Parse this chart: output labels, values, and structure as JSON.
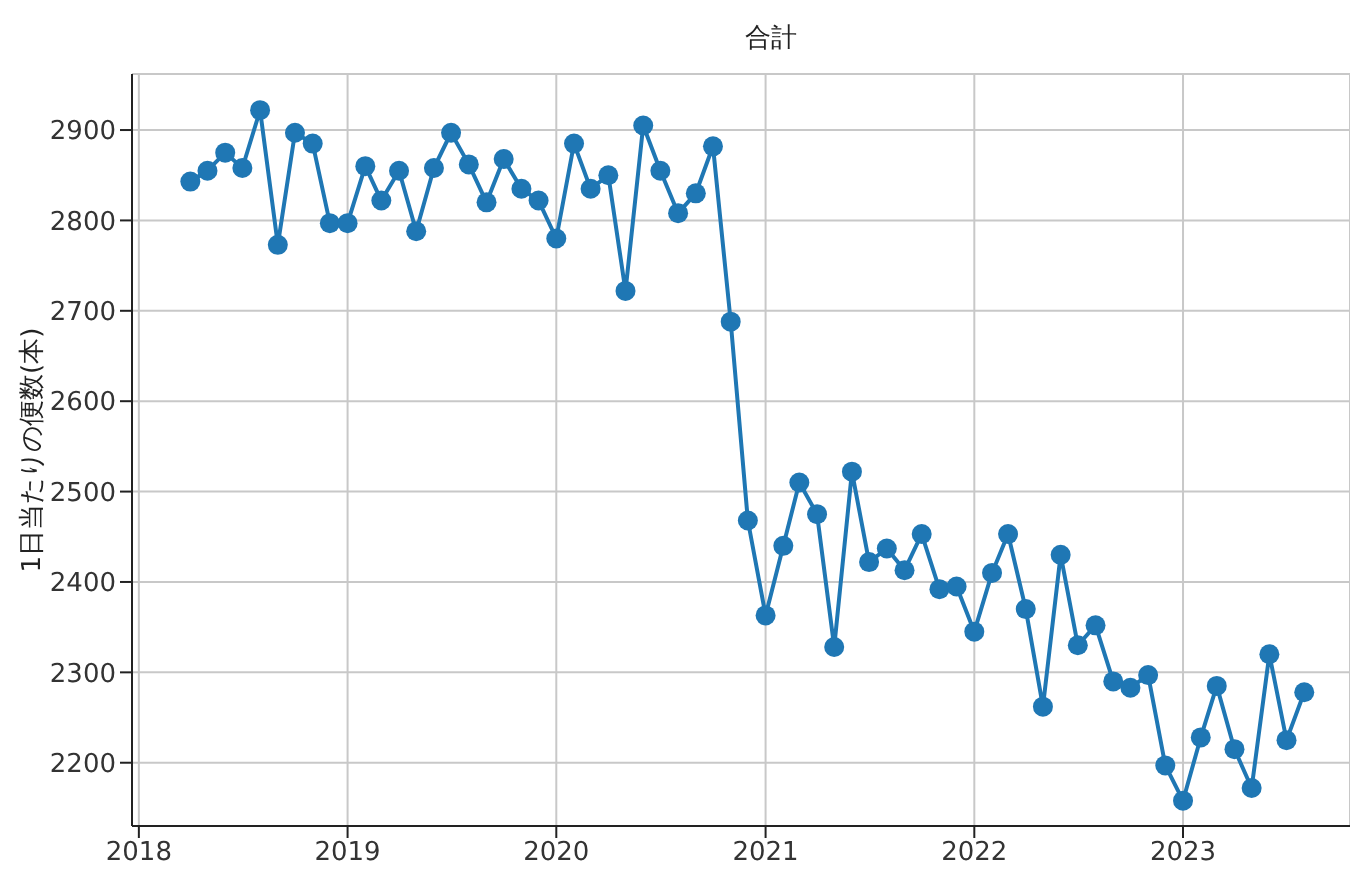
{
  "chart_data": {
    "type": "line",
    "title": "合計",
    "ylabel": "1日当たりの便数(本)",
    "x": [
      "2018-04",
      "2018-05",
      "2018-06",
      "2018-07",
      "2018-08",
      "2018-09",
      "2018-10",
      "2018-11",
      "2018-12",
      "2019-01",
      "2019-02",
      "2019-03",
      "2019-04",
      "2019-05",
      "2019-06",
      "2019-07",
      "2019-08",
      "2019-09",
      "2019-10",
      "2019-11",
      "2019-12",
      "2020-01",
      "2020-02",
      "2020-03",
      "2020-04",
      "2020-05",
      "2020-06",
      "2020-07",
      "2020-08",
      "2020-09",
      "2020-10",
      "2020-11",
      "2020-12",
      "2021-01",
      "2021-02",
      "2021-03",
      "2021-04",
      "2021-05",
      "2021-06",
      "2021-07",
      "2021-08",
      "2021-09",
      "2021-10",
      "2021-11",
      "2021-12",
      "2022-01",
      "2022-02",
      "2022-03",
      "2022-04",
      "2022-05",
      "2022-06",
      "2022-07",
      "2022-08",
      "2022-09",
      "2022-10",
      "2022-11",
      "2022-12",
      "2023-01",
      "2023-02",
      "2023-03",
      "2023-04",
      "2023-05",
      "2023-06",
      "2023-07",
      "2023-08"
    ],
    "series": [
      {
        "color": "#1f77b4",
        "values": [
          2843,
          2855,
          2875,
          2858,
          2922,
          2773,
          2897,
          2885,
          2797,
          2797,
          2860,
          2822,
          2855,
          2788,
          2858,
          2897,
          2862,
          2820,
          2868,
          2835,
          2822,
          2780,
          2885,
          2835,
          2850,
          2722,
          2905,
          2855,
          2808,
          2830,
          2882,
          2688,
          2468,
          2363,
          2440,
          2510,
          2475,
          2328,
          2522,
          2422,
          2437,
          2413,
          2453,
          2392,
          2395,
          2345,
          2410,
          2453,
          2370,
          2262,
          2430,
          2330,
          2352,
          2290,
          2283,
          2297,
          2197,
          2158,
          2228,
          2285,
          2215,
          2172,
          2320,
          2225,
          2278
        ]
      }
    ],
    "xlim": [
      "2017-12-20",
      "2023-10-20"
    ],
    "xticks": [
      "2018",
      "2019",
      "2020",
      "2021",
      "2022",
      "2023"
    ],
    "ylim": [
      2130,
      2962
    ],
    "yticks": [
      2200,
      2300,
      2400,
      2500,
      2600,
      2700,
      2800,
      2900
    ],
    "grid": true,
    "marker": "circle",
    "line_style": "solid",
    "legend": false
  }
}
